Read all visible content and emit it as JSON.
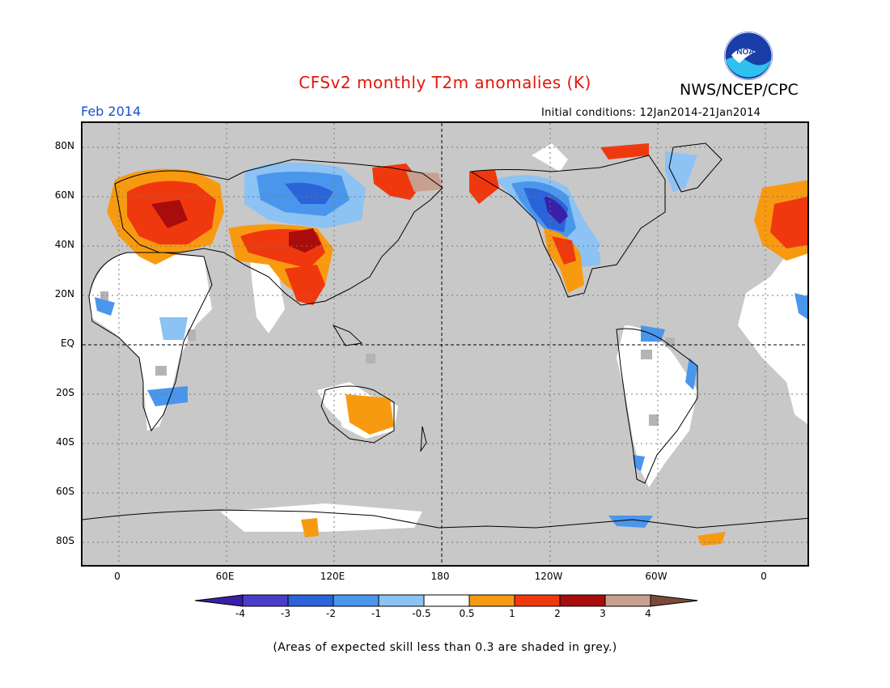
{
  "header": {
    "title": "CFSv2 monthly T2m anomalies (K)",
    "agency": "NWS/NCEP/CPC",
    "period": "Feb 2014",
    "initial_conditions": "Initial conditions: 12Jan2014-21Jan2014",
    "logo_text": "NOAA"
  },
  "map": {
    "lat_labels": [
      "80N",
      "60N",
      "40N",
      "20N",
      "EQ",
      "20S",
      "40S",
      "60S",
      "80S"
    ],
    "lon_labels": [
      "0",
      "60E",
      "120E",
      "180",
      "120W",
      "60W",
      "0"
    ],
    "projection": "cylindrical equidistant, centered 180",
    "masked_color": "#c8c8c8"
  },
  "colorbar": {
    "tick_labels": [
      "-4",
      "-3",
      "-2",
      "-1",
      "-0.5",
      "0.5",
      "1",
      "2",
      "3",
      "4"
    ],
    "colors": [
      "#3a1fa8",
      "#4a3ec8",
      "#2a64d8",
      "#4a96ec",
      "#8cc2f4",
      "#ffffff",
      "#f89a10",
      "#f0380e",
      "#a80c0c",
      "#c8a090",
      "#7a4a38"
    ],
    "units": "K"
  },
  "footnote": "(Areas of expected skill less than 0.3 are shaded in grey.)"
}
